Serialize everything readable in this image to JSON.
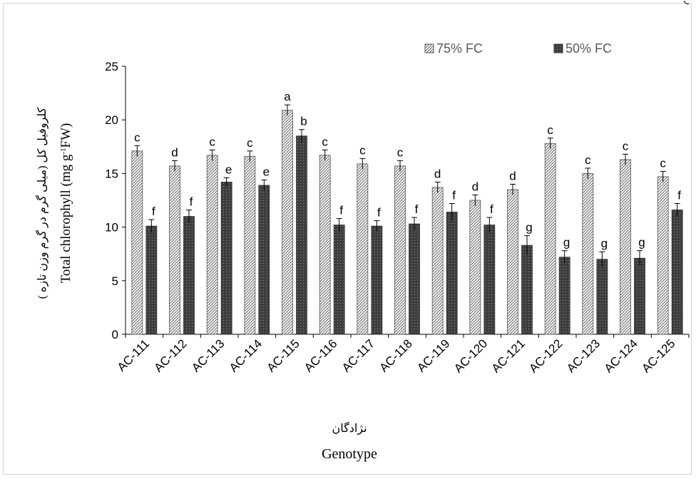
{
  "chart_data": {
    "type": "bar",
    "title": "",
    "xlabel": "Genotype",
    "xlabel_fa": "نژادگان",
    "ylabel": "Total chlorophyll (mg g-1FW)",
    "ylabel_parts": {
      "before": "Total chlorophyll (mg g",
      "sup": "-1",
      "after": "FW)"
    },
    "ylabel_fa": "کلروفیل کل  (میلی گرم در گرم وزن تازه )",
    "ylim": [
      0,
      25
    ],
    "yticks": [
      0,
      5,
      10,
      15,
      20,
      25
    ],
    "ytick_labels": [
      "0",
      "5",
      "10",
      "15",
      "20",
      "25"
    ],
    "grid": false,
    "legend_position": "top",
    "categories": [
      "AC-111",
      "AC-112",
      "AC-113",
      "AC-114",
      "AC-115",
      "AC-116",
      "AC-117",
      "AC-118",
      "AC-119",
      "AC-120",
      "AC-121",
      "AC-122",
      "AC-123",
      "AC-124",
      "AC-125"
    ],
    "series": [
      {
        "name": "75% FC",
        "pattern": "diagonal-hatch",
        "color": "#7f7f7f",
        "values": [
          17.1,
          15.7,
          16.7,
          16.6,
          20.9,
          16.7,
          15.9,
          15.7,
          13.7,
          12.5,
          13.5,
          17.8,
          15.0,
          16.3,
          14.7
        ],
        "errors": [
          0.5,
          0.5,
          0.5,
          0.5,
          0.5,
          0.5,
          0.5,
          0.5,
          0.5,
          0.5,
          0.5,
          0.5,
          0.5,
          0.5,
          0.5
        ],
        "letters": [
          "c",
          "d",
          "c",
          "c",
          "a",
          "c",
          "c",
          "c",
          "d",
          "d",
          "d",
          "c",
          "c",
          "c",
          "c"
        ]
      },
      {
        "name": "50% FC",
        "pattern": "dotted-dark",
        "color": "#404040",
        "values": [
          10.1,
          11.0,
          14.2,
          13.9,
          18.5,
          10.2,
          10.1,
          10.3,
          11.4,
          10.2,
          8.3,
          7.2,
          7.0,
          7.1,
          11.6
        ],
        "errors": [
          0.6,
          0.6,
          0.4,
          0.5,
          0.6,
          0.6,
          0.5,
          0.6,
          0.8,
          0.7,
          0.9,
          0.6,
          0.7,
          0.7,
          0.6
        ],
        "letters": [
          "f",
          "f",
          "e",
          "e",
          "b",
          "f",
          "f",
          "f",
          "f",
          "f",
          "g",
          "g",
          "g",
          "g",
          "f"
        ]
      }
    ]
  }
}
